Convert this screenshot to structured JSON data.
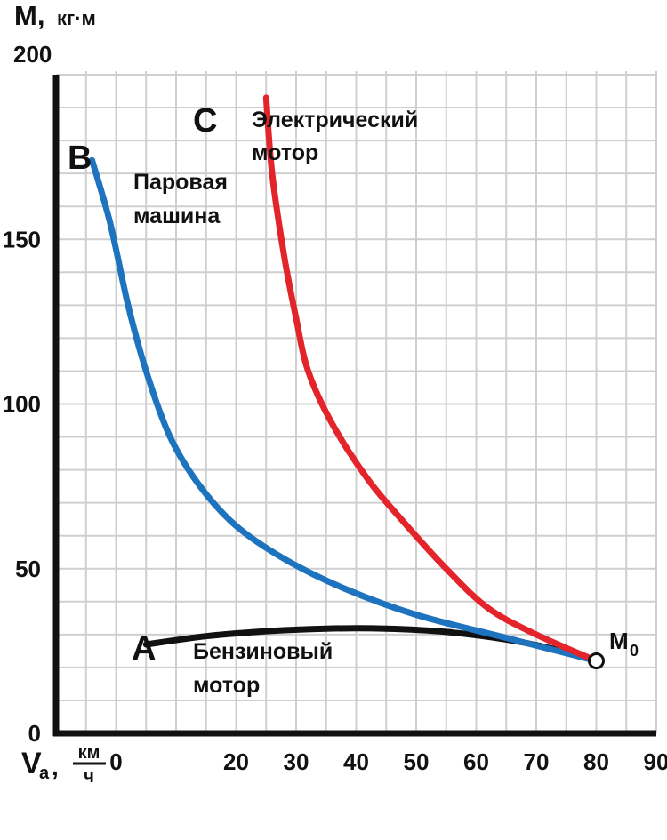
{
  "chart_data": {
    "type": "line",
    "ylabel": "M,",
    "yunit": "кг·м",
    "xlabel_sym": "V",
    "xlabel_sub": "a",
    "xunit_num": "км",
    "xunit_den": "ч",
    "xlim": [
      -10,
      90
    ],
    "ylim": [
      0,
      200
    ],
    "xticks": [
      0,
      20,
      30,
      40,
      50,
      60,
      70,
      80,
      90
    ],
    "yticks": [
      0,
      50,
      100,
      150,
      200
    ],
    "grid": true,
    "series": [
      {
        "name": "Бензиновый мотор",
        "letter": "A",
        "label_lines": [
          "Бензиновый",
          "мотор"
        ],
        "color": "#111111",
        "x": [
          5,
          15,
          25,
          35,
          45,
          55,
          65,
          72,
          80
        ],
        "y": [
          27,
          29.5,
          31,
          31.8,
          31.8,
          30.8,
          28.5,
          26,
          22
        ]
      },
      {
        "name": "Паровая машина",
        "letter": "B",
        "label_lines": [
          "Паровая",
          "машина"
        ],
        "color": "#1e73be",
        "x": [
          -4,
          -1,
          2,
          5,
          9,
          14,
          20,
          28,
          38,
          50,
          65,
          80
        ],
        "y": [
          174,
          155,
          130,
          110,
          90,
          75,
          63,
          53,
          44,
          36,
          29,
          22
        ]
      },
      {
        "name": "Электрический мотор",
        "letter": "C",
        "label_lines": [
          "Электрический",
          "мотор"
        ],
        "color": "#e3242b",
        "x": [
          25,
          26,
          28,
          30,
          32,
          36,
          42,
          48,
          55,
          62,
          70,
          80
        ],
        "y": [
          193,
          170,
          145,
          126,
          110,
          94,
          77,
          64,
          50,
          38,
          30,
          22
        ]
      }
    ],
    "point": {
      "label": "M",
      "sub": "0",
      "x": 80,
      "y": 22
    }
  }
}
